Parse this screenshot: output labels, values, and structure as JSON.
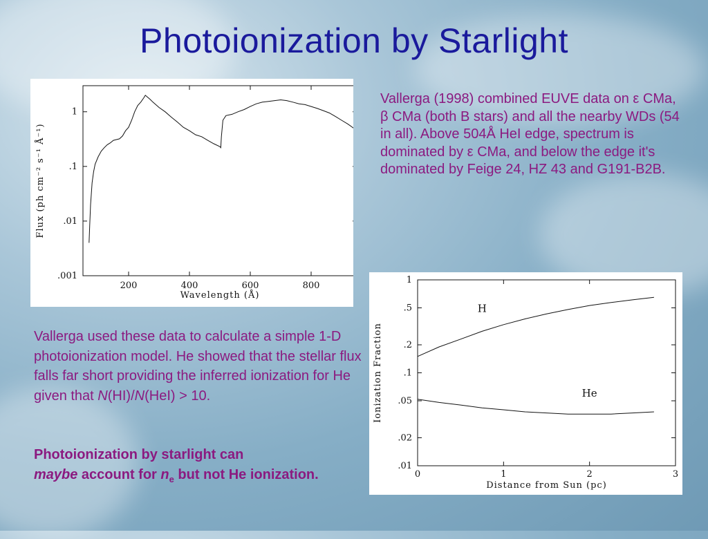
{
  "title": "Photoionization by Starlight",
  "text": {
    "right_paragraph": "Vallerga (1998) combined EUVE data on ε CMa, β CMa (both B stars) and all the nearby WDs  (54 in all).  Above 504Å HeI edge, spectrum is dominated by ε CMa, and below the edge it's dominated by Feige 24, HZ 43 and G191-B2B.",
    "left_paragraph_pre": "Vallerga used these data to calculate a simple 1-D photoionization model. He showed that the stellar flux falls far short providing the inferred ionization for He given that ",
    "ratio_N1": "N",
    "ratio_mid": "(HI)/",
    "ratio_N2": "N",
    "ratio_post": "(HeI) > 10.",
    "conclusion_a": "Photoionization by starlight can ",
    "conclusion_maybe": "maybe",
    "conclusion_b": " account for ",
    "conclusion_n": "n",
    "conclusion_sub": "e",
    "conclusion_c": " but not He ionization."
  },
  "colors": {
    "title": "#1a1a9c",
    "body_text": "#8b1a80"
  },
  "chart_data": [
    {
      "type": "line",
      "xlabel": "Wavelength (Å)",
      "ylabel": "Flux (ph cm⁻² s⁻¹ Å⁻¹)",
      "y_scale": "log",
      "xlim": [
        50,
        950
      ],
      "ylim": [
        0.001,
        3
      ],
      "x_ticks": [
        200,
        400,
        600,
        800
      ],
      "x_tick_labels": [
        "200",
        "400",
        "600",
        "800"
      ],
      "y_ticks": [
        0.001,
        0.01,
        0.1,
        1
      ],
      "y_tick_labels": [
        ".001",
        ".01",
        ".1",
        "1"
      ],
      "series": [
        {
          "x": [
            70,
            72,
            75,
            80,
            85,
            90,
            100,
            110,
            120,
            130,
            140,
            150,
            160,
            170,
            180,
            190,
            200,
            210,
            220,
            230,
            240,
            250,
            255,
            260,
            270,
            280,
            300,
            320,
            340,
            360,
            380,
            400,
            420,
            440,
            460,
            480,
            500,
            503,
            505,
            510,
            520,
            540,
            560,
            580,
            600,
            620,
            640,
            660,
            680,
            700,
            720,
            740,
            760,
            780,
            800,
            820,
            840,
            860,
            880,
            900,
            920,
            940
          ],
          "y": [
            0.004,
            0.008,
            0.02,
            0.05,
            0.08,
            0.11,
            0.15,
            0.19,
            0.22,
            0.25,
            0.27,
            0.3,
            0.31,
            0.32,
            0.36,
            0.45,
            0.52,
            0.7,
            1.0,
            1.3,
            1.5,
            1.8,
            2.0,
            1.9,
            1.7,
            1.5,
            1.2,
            1.0,
            0.8,
            0.65,
            0.52,
            0.45,
            0.38,
            0.35,
            0.3,
            0.26,
            0.23,
            0.22,
            0.35,
            0.7,
            0.85,
            0.9,
            1.0,
            1.1,
            1.25,
            1.4,
            1.5,
            1.55,
            1.6,
            1.65,
            1.6,
            1.5,
            1.4,
            1.35,
            1.25,
            1.15,
            1.05,
            0.95,
            0.82,
            0.7,
            0.6,
            0.5
          ]
        }
      ]
    },
    {
      "type": "line",
      "xlabel": "Distance from Sun (pc)",
      "ylabel": "Ionization Fraction",
      "y_scale": "log",
      "xlim": [
        0,
        3
      ],
      "ylim": [
        0.01,
        1
      ],
      "x_ticks": [
        0,
        1,
        2,
        3
      ],
      "x_tick_labels": [
        "0",
        "1",
        "2",
        "3"
      ],
      "y_ticks": [
        0.01,
        0.02,
        0.05,
        0.1,
        0.2,
        0.5,
        1
      ],
      "y_tick_labels": [
        ".01",
        ".02",
        ".05",
        ".1",
        ".2",
        ".5",
        "1"
      ],
      "series": [
        {
          "name": "H",
          "x": [
            0,
            0.25,
            0.5,
            0.75,
            1.0,
            1.25,
            1.5,
            1.75,
            2.0,
            2.25,
            2.5,
            2.75
          ],
          "y": [
            0.15,
            0.19,
            0.23,
            0.28,
            0.33,
            0.38,
            0.43,
            0.48,
            0.53,
            0.57,
            0.61,
            0.65
          ]
        },
        {
          "name": "He",
          "x": [
            0,
            0.25,
            0.5,
            0.75,
            1.0,
            1.25,
            1.5,
            1.75,
            2.0,
            2.25,
            2.5,
            2.75
          ],
          "y": [
            0.052,
            0.048,
            0.045,
            0.042,
            0.04,
            0.038,
            0.037,
            0.036,
            0.036,
            0.036,
            0.037,
            0.038
          ]
        }
      ]
    }
  ]
}
